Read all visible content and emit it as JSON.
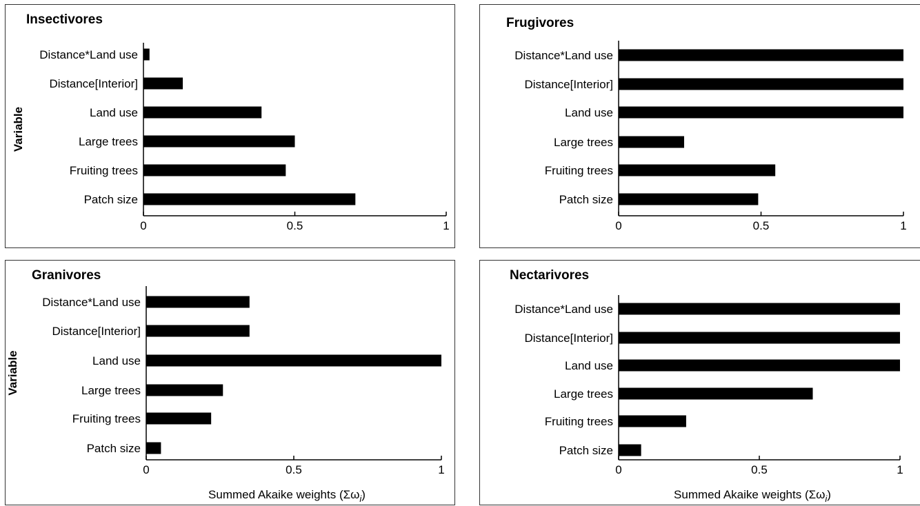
{
  "chart_data": [
    {
      "type": "bar",
      "orientation": "horizontal",
      "title": "Insectivores",
      "ylabel": "Variable",
      "xlabel": "",
      "categories": [
        "Distance*Land use",
        "Distance[Interior]",
        "Land use",
        "Large trees",
        "Fruiting trees",
        "Patch size"
      ],
      "values": [
        0.02,
        0.13,
        0.39,
        0.5,
        0.47,
        0.7
      ],
      "xlim": [
        0,
        1
      ],
      "xticks": [
        "0",
        "0.5",
        "1"
      ],
      "grid": false
    },
    {
      "type": "bar",
      "orientation": "horizontal",
      "title": "Frugivores",
      "ylabel": "",
      "xlabel": "",
      "categories": [
        "Distance*Land use",
        "Distance[Interior]",
        "Land use",
        "Large trees",
        "Fruiting trees",
        "Patch size"
      ],
      "values": [
        1.0,
        1.0,
        1.0,
        0.23,
        0.55,
        0.49
      ],
      "xlim": [
        0,
        1
      ],
      "xticks": [
        "0",
        "0.5",
        "1"
      ],
      "grid": false
    },
    {
      "type": "bar",
      "orientation": "horizontal",
      "title": "Granivores",
      "ylabel": "Variable",
      "xlabel": "Summed Akaike weights (Σω",
      "xlabel_sub": "i",
      "xlabel_end": ")",
      "categories": [
        "Distance*Land use",
        "Distance[Interior]",
        "Land use",
        "Large trees",
        "Fruiting trees",
        "Patch size"
      ],
      "values": [
        0.35,
        0.35,
        1.0,
        0.26,
        0.22,
        0.05
      ],
      "xlim": [
        0,
        1
      ],
      "xticks": [
        "0",
        "0.5",
        "1"
      ],
      "grid": false
    },
    {
      "type": "bar",
      "orientation": "horizontal",
      "title": "Nectarivores",
      "ylabel": "",
      "xlabel": "Summed Akaike weights (Σω",
      "xlabel_sub": "i",
      "xlabel_end": ")",
      "categories": [
        "Distance*Land use",
        "Distance[Interior]",
        "Land use",
        "Large trees",
        "Fruiting trees",
        "Patch size"
      ],
      "values": [
        1.0,
        1.0,
        1.0,
        0.69,
        0.24,
        0.08
      ],
      "xlim": [
        0,
        1
      ],
      "xticks": [
        "0",
        "0.5",
        "1"
      ],
      "grid": false
    }
  ],
  "colors": {
    "bar": "#000000",
    "axis": "#000000",
    "frame": "#333333",
    "background": "#ffffff"
  }
}
